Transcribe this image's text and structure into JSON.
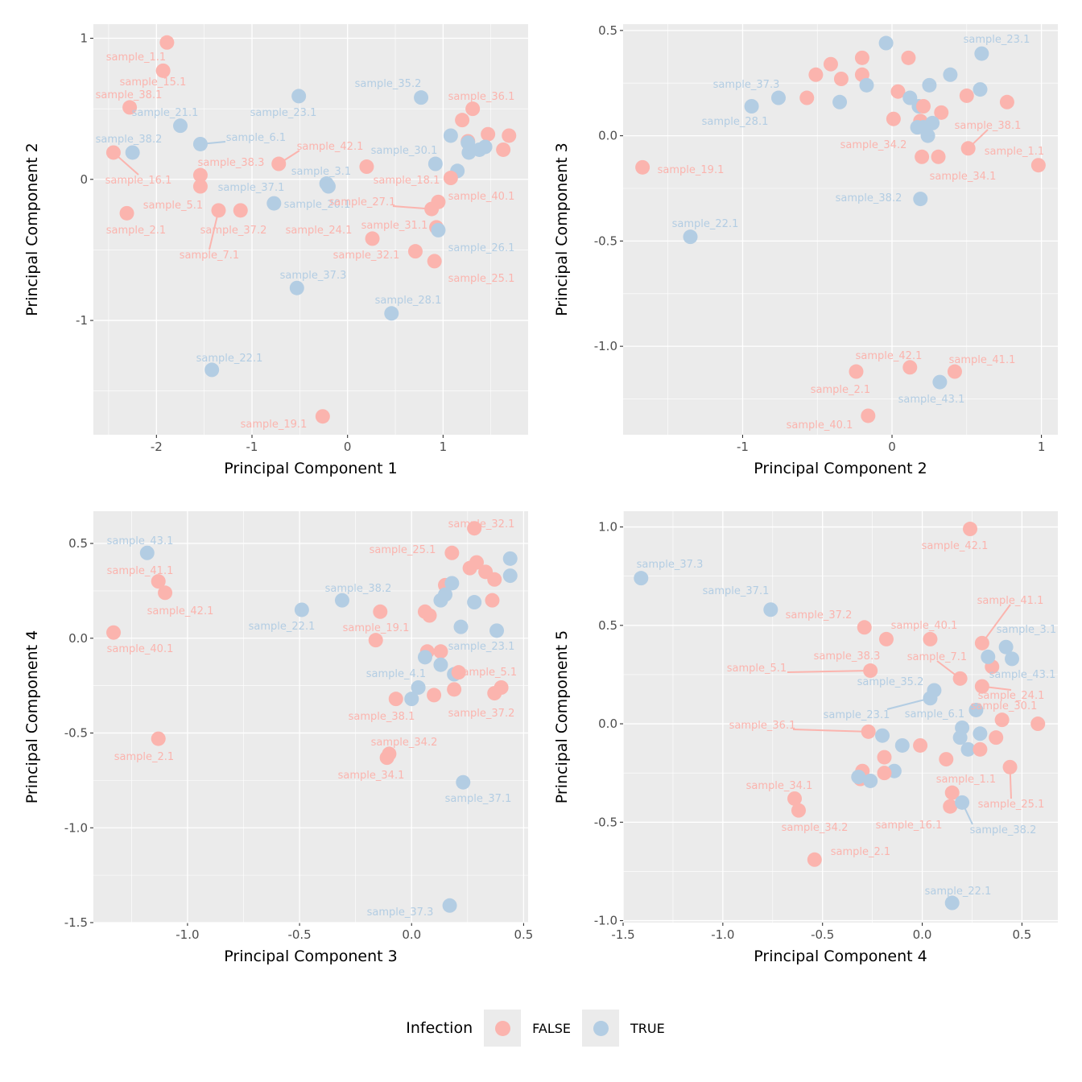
{
  "colors": {
    "FALSE": "#FBB4AE",
    "TRUE": "#B3CDE3",
    "panel_bg": "#EBEBEB",
    "grid": "#FFFFFF"
  },
  "legend": {
    "title": "Infection",
    "items": [
      {
        "label": "FALSE",
        "color": "#FBB4AE"
      },
      {
        "label": "TRUE",
        "color": "#B3CDE3"
      }
    ]
  },
  "chart_data": [
    {
      "type": "scatter",
      "xlabel": "Principal Component 1",
      "ylabel": "Principal Component 2",
      "xlim": [
        -2.66,
        1.89
      ],
      "ylim": [
        -1.81,
        1.1
      ],
      "xticks": [
        -2,
        -1,
        0,
        1
      ],
      "xtick_labels": [
        "-2",
        "-1",
        "0",
        "1"
      ],
      "yticks": [
        -1,
        0,
        1
      ],
      "ytick_labels": [
        "-1",
        "0",
        "1"
      ],
      "grid": true,
      "points": [
        [
          -1.89,
          0.97,
          "FALSE",
          "sample_1.1"
        ],
        [
          -1.93,
          0.77,
          "FALSE",
          "sample_15.1"
        ],
        [
          -2.28,
          0.51,
          "FALSE",
          "sample_38.1"
        ],
        [
          -1.75,
          0.38,
          "TRUE",
          "sample_21.1"
        ],
        [
          -2.25,
          0.19,
          "TRUE",
          "sample_38.2"
        ],
        [
          -2.45,
          0.19,
          "FALSE",
          "sample_16.1"
        ],
        [
          -1.54,
          0.25,
          "TRUE",
          "sample_6.1"
        ],
        [
          -1.54,
          0.03,
          "FALSE",
          "sample_38.3"
        ],
        [
          -1.54,
          -0.05,
          "FALSE",
          "sample_5.1"
        ],
        [
          -2.31,
          -0.24,
          "FALSE",
          "sample_2.1"
        ],
        [
          -1.35,
          -0.22,
          "FALSE",
          "sample_7.1"
        ],
        [
          -1.12,
          -0.22,
          "FALSE",
          "sample_37.2"
        ],
        [
          -0.77,
          -0.17,
          "TRUE",
          "sample_20.1"
        ],
        [
          -0.72,
          0.11,
          "FALSE",
          "sample_42.1"
        ],
        [
          -0.51,
          0.59,
          "TRUE",
          "sample_23.1"
        ],
        [
          -0.2,
          -0.05,
          "TRUE",
          "sample_3.1"
        ],
        [
          -0.22,
          -0.03,
          "TRUE",
          "sample_37.1"
        ],
        [
          0.2,
          0.09,
          "FALSE",
          ""
        ],
        [
          0.77,
          0.58,
          "TRUE",
          "sample_35.2"
        ],
        [
          1.31,
          0.5,
          "FALSE",
          "sample_36.1"
        ],
        [
          1.2,
          0.42,
          "FALSE",
          ""
        ],
        [
          1.08,
          0.31,
          "TRUE",
          ""
        ],
        [
          1.26,
          0.27,
          "FALSE",
          ""
        ],
        [
          1.47,
          0.32,
          "FALSE",
          ""
        ],
        [
          1.69,
          0.31,
          "FALSE",
          ""
        ],
        [
          1.63,
          0.21,
          "FALSE",
          ""
        ],
        [
          1.27,
          0.19,
          "TRUE",
          ""
        ],
        [
          1.38,
          0.21,
          "TRUE",
          ""
        ],
        [
          1.44,
          0.23,
          "TRUE",
          ""
        ],
        [
          1.26,
          0.26,
          "TRUE",
          ""
        ],
        [
          0.92,
          0.11,
          "TRUE",
          "sample_30.1"
        ],
        [
          1.15,
          0.06,
          "TRUE",
          ""
        ],
        [
          1.08,
          0.01,
          "FALSE",
          "sample_18.1"
        ],
        [
          0.95,
          -0.16,
          "FALSE",
          "sample_40.1"
        ],
        [
          0.88,
          -0.21,
          "FALSE",
          "sample_27.1"
        ],
        [
          0.93,
          -0.34,
          "FALSE",
          "sample_31.1"
        ],
        [
          0.95,
          -0.36,
          "TRUE",
          "sample_26.1"
        ],
        [
          0.26,
          -0.42,
          "FALSE",
          "sample_24.1"
        ],
        [
          0.71,
          -0.51,
          "FALSE",
          "sample_32.1"
        ],
        [
          0.91,
          -0.58,
          "FALSE",
          "sample_25.1"
        ],
        [
          -0.53,
          -0.77,
          "TRUE",
          "sample_37.3"
        ],
        [
          0.46,
          -0.95,
          "TRUE",
          "sample_28.1"
        ],
        [
          -1.42,
          -1.35,
          "TRUE",
          "sample_22.1"
        ],
        [
          -0.26,
          -1.68,
          "FALSE",
          "sample_19.1"
        ]
      ]
    },
    {
      "type": "scatter",
      "xlabel": "Principal Component 2",
      "ylabel": "Principal Component 3",
      "xlim": [
        -1.8,
        1.11
      ],
      "ylim": [
        -1.42,
        0.53
      ],
      "xticks": [
        -1,
        0,
        1
      ],
      "xtick_labels": [
        "-1",
        "0",
        "1"
      ],
      "yticks": [
        -1.0,
        -0.5,
        0.0,
        0.5
      ],
      "ytick_labels": [
        "-1.0",
        "-0.5",
        "0.0",
        "0.5"
      ],
      "grid": true,
      "points": [
        [
          -0.04,
          0.44,
          "TRUE",
          ""
        ],
        [
          0.11,
          0.37,
          "FALSE",
          ""
        ],
        [
          -0.2,
          0.37,
          "FALSE",
          ""
        ],
        [
          -0.41,
          0.34,
          "FALSE",
          ""
        ],
        [
          -0.51,
          0.29,
          "FALSE",
          ""
        ],
        [
          -0.34,
          0.27,
          "FALSE",
          ""
        ],
        [
          -0.2,
          0.29,
          "FALSE",
          ""
        ],
        [
          -0.57,
          0.18,
          "FALSE",
          ""
        ],
        [
          0.04,
          0.21,
          "FALSE",
          ""
        ],
        [
          0.12,
          0.18,
          "TRUE",
          ""
        ],
        [
          0.18,
          0.14,
          "TRUE",
          ""
        ],
        [
          0.21,
          0.14,
          "FALSE",
          ""
        ],
        [
          -0.17,
          0.24,
          "TRUE",
          ""
        ],
        [
          -0.35,
          0.16,
          "TRUE",
          ""
        ],
        [
          -0.76,
          0.18,
          "TRUE",
          "sample_37.3"
        ],
        [
          -0.94,
          0.14,
          "TRUE",
          "sample_28.1"
        ],
        [
          0.25,
          0.24,
          "TRUE",
          ""
        ],
        [
          0.39,
          0.29,
          "TRUE",
          ""
        ],
        [
          0.6,
          0.39,
          "TRUE",
          "sample_23.1"
        ],
        [
          0.59,
          0.22,
          "TRUE",
          ""
        ],
        [
          0.5,
          0.19,
          "FALSE",
          ""
        ],
        [
          0.77,
          0.16,
          "FALSE",
          ""
        ],
        [
          0.01,
          0.08,
          "FALSE",
          ""
        ],
        [
          0.33,
          0.11,
          "FALSE",
          ""
        ],
        [
          0.19,
          0.07,
          "FALSE",
          ""
        ],
        [
          0.17,
          0.04,
          "TRUE",
          ""
        ],
        [
          0.24,
          0.0,
          "TRUE",
          ""
        ],
        [
          0.27,
          0.06,
          "TRUE",
          ""
        ],
        [
          0.21,
          0.04,
          "TRUE",
          ""
        ],
        [
          0.51,
          -0.06,
          "FALSE",
          "sample_38.1"
        ],
        [
          0.2,
          -0.1,
          "FALSE",
          "sample_34.2"
        ],
        [
          0.31,
          -0.1,
          "FALSE",
          "sample_34.1"
        ],
        [
          0.98,
          -0.14,
          "FALSE",
          "sample_1.1"
        ],
        [
          -1.67,
          -0.15,
          "FALSE",
          "sample_19.1"
        ],
        [
          0.19,
          -0.3,
          "TRUE",
          "sample_38.2"
        ],
        [
          -1.35,
          -0.48,
          "TRUE",
          "sample_22.1"
        ],
        [
          -0.24,
          -1.12,
          "FALSE",
          "sample_2.1"
        ],
        [
          0.12,
          -1.1,
          "FALSE",
          "sample_42.1"
        ],
        [
          0.42,
          -1.12,
          "FALSE",
          "sample_41.1"
        ],
        [
          0.32,
          -1.17,
          "TRUE",
          "sample_43.1"
        ],
        [
          -0.16,
          -1.33,
          "FALSE",
          "sample_40.1"
        ]
      ]
    },
    {
      "type": "scatter",
      "xlabel": "Principal Component 3",
      "ylabel": "Principal Component 4",
      "xlim": [
        -1.42,
        0.52
      ],
      "ylim": [
        -1.5,
        0.67
      ],
      "xticks": [
        -1.0,
        -0.5,
        0.0,
        0.5
      ],
      "xtick_labels": [
        "-1.0",
        "-0.5",
        "0.0",
        "0.5"
      ],
      "yticks": [
        -1.5,
        -1.0,
        -0.5,
        0.0,
        0.5
      ],
      "ytick_labels": [
        "-1.5",
        "-1.0",
        "-0.5",
        "0.0",
        "0.5"
      ],
      "grid": true,
      "points": [
        [
          -1.18,
          0.45,
          "TRUE",
          "sample_43.1"
        ],
        [
          -1.13,
          0.3,
          "FALSE",
          "sample_41.1"
        ],
        [
          -1.1,
          0.24,
          "FALSE",
          "sample_42.1"
        ],
        [
          -1.33,
          0.03,
          "FALSE",
          "sample_40.1"
        ],
        [
          -1.13,
          -0.53,
          "FALSE",
          "sample_2.1"
        ],
        [
          -0.49,
          0.15,
          "TRUE",
          "sample_22.1"
        ],
        [
          -0.31,
          0.2,
          "TRUE",
          "sample_38.2"
        ],
        [
          -0.14,
          0.14,
          "FALSE",
          "sample_19.1"
        ],
        [
          -0.16,
          -0.01,
          "FALSE",
          ""
        ],
        [
          0.06,
          0.14,
          "FALSE",
          ""
        ],
        [
          0.08,
          0.12,
          "FALSE",
          ""
        ],
        [
          0.18,
          0.45,
          "FALSE",
          "sample_25.1"
        ],
        [
          0.28,
          0.58,
          "FALSE",
          "sample_32.1"
        ],
        [
          0.26,
          0.37,
          "FALSE",
          ""
        ],
        [
          0.29,
          0.4,
          "FALSE",
          ""
        ],
        [
          0.33,
          0.35,
          "FALSE",
          ""
        ],
        [
          0.37,
          0.31,
          "FALSE",
          ""
        ],
        [
          0.44,
          0.42,
          "TRUE",
          ""
        ],
        [
          0.44,
          0.33,
          "TRUE",
          ""
        ],
        [
          0.15,
          0.28,
          "FALSE",
          ""
        ],
        [
          0.18,
          0.29,
          "TRUE",
          ""
        ],
        [
          0.15,
          0.23,
          "TRUE",
          ""
        ],
        [
          0.13,
          0.2,
          "TRUE",
          ""
        ],
        [
          0.28,
          0.19,
          "TRUE",
          ""
        ],
        [
          0.36,
          0.2,
          "FALSE",
          ""
        ],
        [
          0.22,
          0.06,
          "TRUE",
          ""
        ],
        [
          0.38,
          0.04,
          "TRUE",
          ""
        ],
        [
          0.07,
          -0.07,
          "FALSE",
          ""
        ],
        [
          0.13,
          -0.07,
          "FALSE",
          ""
        ],
        [
          0.06,
          -0.1,
          "TRUE",
          "sample_4.1"
        ],
        [
          0.13,
          -0.14,
          "TRUE",
          "sample_23.1"
        ],
        [
          0.19,
          -0.19,
          "TRUE",
          ""
        ],
        [
          0.21,
          -0.18,
          "FALSE",
          "sample_5.1"
        ],
        [
          0.03,
          -0.26,
          "TRUE",
          ""
        ],
        [
          0.0,
          -0.32,
          "TRUE",
          ""
        ],
        [
          -0.07,
          -0.32,
          "FALSE",
          "sample_38.1"
        ],
        [
          0.1,
          -0.3,
          "FALSE",
          ""
        ],
        [
          0.19,
          -0.27,
          "FALSE",
          ""
        ],
        [
          0.37,
          -0.29,
          "FALSE",
          ""
        ],
        [
          0.4,
          -0.26,
          "FALSE",
          "sample_37.2"
        ],
        [
          -0.1,
          -0.61,
          "FALSE",
          "sample_34.2"
        ],
        [
          -0.11,
          -0.63,
          "FALSE",
          "sample_34.1"
        ],
        [
          0.23,
          -0.76,
          "TRUE",
          "sample_37.1"
        ],
        [
          0.17,
          -1.41,
          "TRUE",
          "sample_37.3"
        ]
      ]
    },
    {
      "type": "scatter",
      "xlabel": "Principal Component 4",
      "ylabel": "Principal Component 5",
      "xlim": [
        -1.5,
        0.68
      ],
      "ylim": [
        -1.01,
        1.08
      ],
      "xticks": [
        -1.5,
        -1.0,
        -0.5,
        0.0,
        0.5
      ],
      "xtick_labels": [
        "-1.5",
        "-1.0",
        "-0.5",
        "0.0",
        "0.5"
      ],
      "yticks": [
        -1.0,
        -0.5,
        0.0,
        0.5,
        1.0
      ],
      "ytick_labels": [
        "-1.0",
        "-0.5",
        "0.0",
        "0.5",
        "1.0"
      ],
      "grid": true,
      "points": [
        [
          -1.41,
          0.74,
          "TRUE",
          "sample_37.3"
        ],
        [
          -0.76,
          0.58,
          "TRUE",
          "sample_37.1"
        ],
        [
          0.24,
          0.99,
          "FALSE",
          "sample_42.1"
        ],
        [
          -0.29,
          0.49,
          "FALSE",
          "sample_37.2"
        ],
        [
          -0.18,
          0.43,
          "FALSE",
          "sample_38.3"
        ],
        [
          0.04,
          0.43,
          "FALSE",
          "sample_40.1"
        ],
        [
          0.3,
          0.41,
          "FALSE",
          "sample_41.1"
        ],
        [
          0.42,
          0.39,
          "TRUE",
          "sample_3.1"
        ],
        [
          0.45,
          0.33,
          "TRUE",
          ""
        ],
        [
          0.35,
          0.29,
          "FALSE",
          ""
        ],
        [
          0.33,
          0.34,
          "TRUE",
          "sample_43.1"
        ],
        [
          -0.26,
          0.27,
          "FALSE",
          "sample_5.1"
        ],
        [
          0.19,
          0.23,
          "FALSE",
          "sample_7.1"
        ],
        [
          0.3,
          0.19,
          "FALSE",
          "sample_24.1"
        ],
        [
          0.06,
          0.17,
          "TRUE",
          "sample_35.2"
        ],
        [
          0.04,
          0.13,
          "TRUE",
          "sample_23.1"
        ],
        [
          0.27,
          0.07,
          "TRUE",
          "sample_6.1"
        ],
        [
          0.4,
          0.02,
          "FALSE",
          "sample_30.1"
        ],
        [
          0.58,
          0.0,
          "FALSE",
          ""
        ],
        [
          0.37,
          -0.07,
          "FALSE",
          ""
        ],
        [
          0.29,
          -0.05,
          "TRUE",
          ""
        ],
        [
          0.2,
          -0.02,
          "TRUE",
          ""
        ],
        [
          0.19,
          -0.07,
          "TRUE",
          ""
        ],
        [
          -0.27,
          -0.04,
          "FALSE",
          "sample_36.1"
        ],
        [
          -0.2,
          -0.06,
          "TRUE",
          ""
        ],
        [
          -0.1,
          -0.11,
          "TRUE",
          ""
        ],
        [
          -0.01,
          -0.11,
          "FALSE",
          ""
        ],
        [
          -0.19,
          -0.17,
          "FALSE",
          ""
        ],
        [
          0.12,
          -0.18,
          "FALSE",
          ""
        ],
        [
          0.23,
          -0.13,
          "TRUE",
          ""
        ],
        [
          0.29,
          -0.13,
          "FALSE",
          ""
        ],
        [
          -0.3,
          -0.24,
          "FALSE",
          ""
        ],
        [
          -0.14,
          -0.24,
          "TRUE",
          ""
        ],
        [
          -0.19,
          -0.25,
          "FALSE",
          ""
        ],
        [
          -0.31,
          -0.28,
          "FALSE",
          ""
        ],
        [
          -0.32,
          -0.27,
          "TRUE",
          ""
        ],
        [
          -0.26,
          -0.29,
          "TRUE",
          ""
        ],
        [
          0.44,
          -0.22,
          "FALSE",
          "sample_25.1"
        ],
        [
          0.15,
          -0.35,
          "FALSE",
          "sample_1.1"
        ],
        [
          0.14,
          -0.42,
          "FALSE",
          "sample_16.1"
        ],
        [
          0.2,
          -0.4,
          "TRUE",
          "sample_38.2"
        ],
        [
          -0.64,
          -0.38,
          "FALSE",
          "sample_34.1"
        ],
        [
          -0.62,
          -0.44,
          "FALSE",
          "sample_34.2"
        ],
        [
          -0.54,
          -0.69,
          "FALSE",
          "sample_2.1"
        ],
        [
          0.15,
          -0.91,
          "TRUE",
          "sample_22.1"
        ]
      ]
    }
  ]
}
